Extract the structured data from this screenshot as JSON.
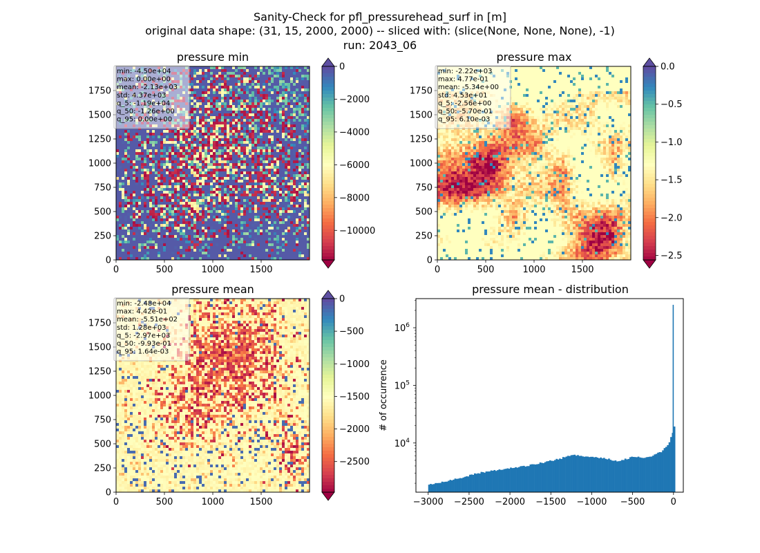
{
  "figure": {
    "title_lines": [
      "Sanity-Check for pfl_pressurehead_surf in [m]",
      "original data shape: (31, 15, 2000, 2000) -- sliced with: (slice(None, None, None), -1)",
      "run: 2043_06"
    ]
  },
  "chart_data": [
    {
      "type": "heatmap",
      "title": "pressure min",
      "cmap": "Spectral",
      "colorbar": {
        "vmin": -11800,
        "vmax": 0,
        "ticks": [
          0,
          -2000,
          -4000,
          -6000,
          -8000,
          -10000
        ],
        "extend": "both"
      },
      "xlim": [
        0,
        2000
      ],
      "ylim": [
        0,
        2000
      ],
      "xticks": [
        0,
        500,
        1000,
        1500
      ],
      "yticks": [
        0,
        250,
        500,
        750,
        1000,
        1250,
        1500,
        1750
      ],
      "stats": [
        "min: -4.50e+04",
        "max: 0.00e+00",
        "mean: -2.13e+03",
        "std: 4.37e+03",
        "q_5: -1.19e+04",
        "q_50: -1.26e+00",
        "q_95: 0.00e+00"
      ]
    },
    {
      "type": "heatmap",
      "title": "pressure max",
      "cmap": "Spectral",
      "colorbar": {
        "vmin": -2.56,
        "vmax": 0.0,
        "ticks": [
          0.0,
          -0.5,
          -1.0,
          -1.5,
          -2.0,
          -2.5
        ],
        "tick_labels": [
          "0.0",
          "−0.5",
          "−1.0",
          "−1.5",
          "−2.0",
          "−2.5"
        ],
        "extend": "both"
      },
      "xlim": [
        0,
        2000
      ],
      "ylim": [
        0,
        2000
      ],
      "xticks": [
        0,
        500,
        1000,
        1500
      ],
      "yticks": [
        0,
        250,
        500,
        750,
        1000,
        1250,
        1500,
        1750
      ],
      "stats": [
        "min: -2.22e+03",
        "max: 4.77e-01",
        "mean: -5.34e+00",
        "std: 4.53e+01",
        "q_5: -2.56e+00",
        "q_50: -5.70e-01",
        "q_95: 6.10e-03"
      ]
    },
    {
      "type": "heatmap",
      "title": "pressure mean",
      "cmap": "Spectral",
      "colorbar": {
        "vmin": -2970,
        "vmax": 0,
        "ticks": [
          0,
          -500,
          -1000,
          -1500,
          -2000,
          -2500
        ],
        "extend": "both"
      },
      "xlim": [
        0,
        2000
      ],
      "ylim": [
        0,
        2000
      ],
      "xticks": [
        0,
        500,
        1000,
        1500
      ],
      "yticks": [
        0,
        250,
        500,
        750,
        1000,
        1250,
        1500,
        1750
      ],
      "stats": [
        "min: -2.48e+04",
        "max: 4.42e-01",
        "mean: -5.51e+02",
        "std: 1.28e+03",
        "q_5: -2.97e+03",
        "q_50: -9.93e-01",
        "q_95: 1.64e-03"
      ]
    },
    {
      "type": "bar",
      "title": "pressure mean - distribution",
      "ylabel": "# of occurrence",
      "yscale": "log",
      "xlim": [
        -3150,
        120
      ],
      "ylim": [
        1400,
        3200000
      ],
      "xticks": [
        -3000,
        -2500,
        -2000,
        -1500,
        -1000,
        -500,
        0
      ],
      "yticks": [
        10000,
        100000,
        1000000
      ],
      "ytick_labels": [
        {
          "base": "10",
          "exp": "4"
        },
        {
          "base": "10",
          "exp": "5"
        },
        {
          "base": "10",
          "exp": "6"
        }
      ],
      "color": "#1f77b4",
      "bin_width": 20,
      "bins": [
        [
          -3000,
          1900
        ],
        [
          -2800,
          2150
        ],
        [
          -2600,
          2500
        ],
        [
          -2400,
          3000
        ],
        [
          -2200,
          3350
        ],
        [
          -2000,
          3650
        ],
        [
          -1800,
          4000
        ],
        [
          -1600,
          4600
        ],
        [
          -1400,
          5300
        ],
        [
          -1250,
          6300
        ],
        [
          -1150,
          6000
        ],
        [
          -1000,
          5700
        ],
        [
          -850,
          5400
        ],
        [
          -700,
          4900
        ],
        [
          -600,
          5200
        ],
        [
          -500,
          5800
        ],
        [
          -350,
          5600
        ],
        [
          -250,
          6100
        ],
        [
          -150,
          7200
        ],
        [
          -100,
          8500
        ],
        [
          -60,
          10500
        ],
        [
          -30,
          13500
        ],
        [
          -15,
          16500
        ],
        [
          -8,
          19500
        ],
        [
          0,
          2500000
        ]
      ]
    }
  ]
}
